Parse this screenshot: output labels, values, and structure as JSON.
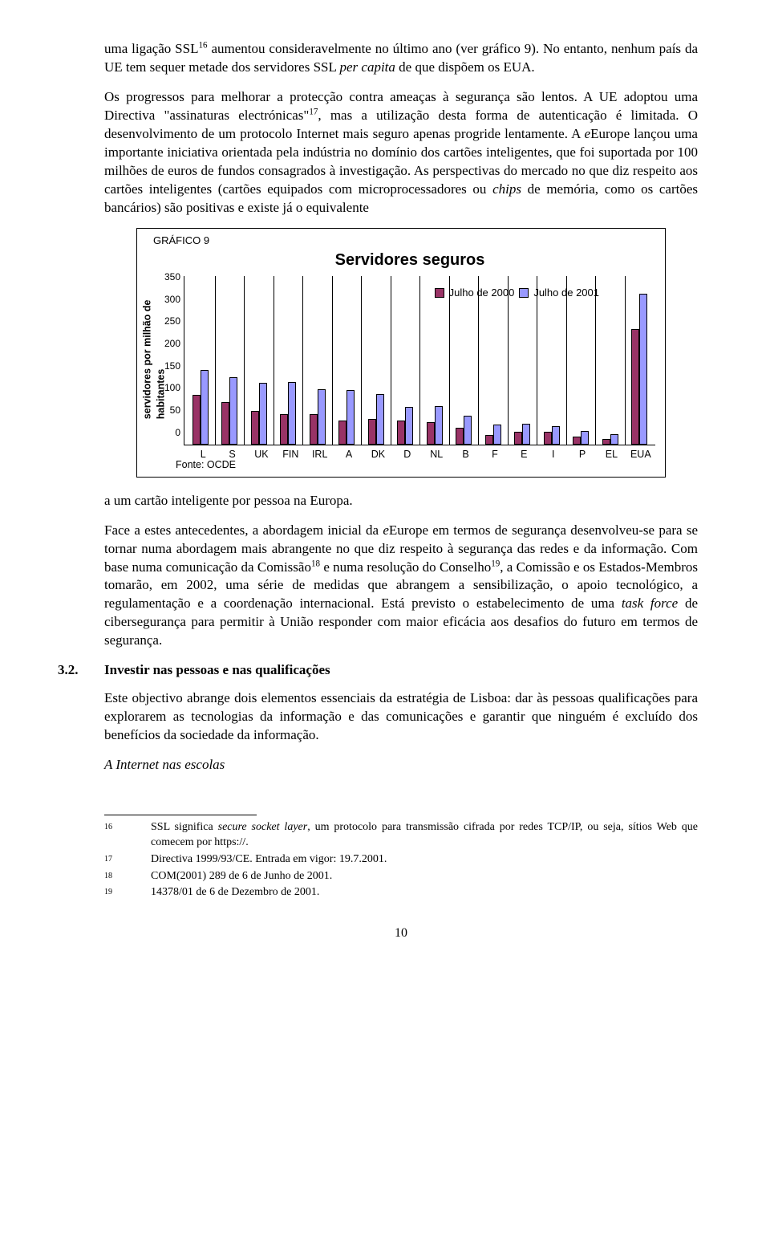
{
  "para1": {
    "t1": "uma ligação SSL",
    "s1": "16",
    "t2": " aumentou consideravelmente no último ano (ver gráfico 9). No entanto, nenhum país da UE tem sequer metade dos servidores SSL ",
    "i1": "per capita",
    "t3": " de que dispõem os EUA."
  },
  "para2": {
    "t1": "Os progressos para melhorar a protecção contra ameaças à segurança são lentos. A UE adoptou uma Directiva \"assinaturas electrónicas\"",
    "s1": "17",
    "t2": ", mas a utilização desta forma de autenticação é limitada. O desenvolvimento de um protocolo Internet mais seguro apenas progride lentamente. A ",
    "i1": "e",
    "t3": "Europe lançou uma importante iniciativa orientada pela indústria no domínio dos cartões inteligentes, que foi suportada por 100 milhões de euros de fundos consagrados à investigação. As perspectivas do mercado no que diz respeito aos cartões inteligentes (cartões equipados com microprocessadores ou ",
    "i2": "chips",
    "t4": " de memória, como os cartões bancários) são positivas e existe já o equivalente"
  },
  "chart": {
    "label": "GRÁFICO 9",
    "title": "Servidores seguros",
    "ylabel": "servidores por milhão de\nhabitantes",
    "legend": [
      "Julho de 2000",
      "Julho de 2001"
    ],
    "colors": [
      "#993366",
      "#9999ff"
    ],
    "ymax": 350,
    "yticks": [
      0,
      50,
      100,
      150,
      200,
      250,
      300,
      350
    ],
    "categories": [
      "L",
      "S",
      "UK",
      "FIN",
      "IRL",
      "A",
      "DK",
      "D",
      "NL",
      "B",
      "F",
      "E",
      "I",
      "P",
      "EL",
      "EUA"
    ],
    "series1": [
      103,
      88,
      70,
      63,
      63,
      50,
      53,
      50,
      47,
      35,
      20,
      27,
      27,
      16,
      12,
      240
    ],
    "series2": [
      155,
      140,
      128,
      130,
      115,
      113,
      105,
      78,
      80,
      60,
      42,
      43,
      38,
      28,
      22,
      313
    ],
    "fonte": "Fonte: OCDE"
  },
  "para3": "a um cartão inteligente por pessoa na Europa.",
  "para4": {
    "t1": "Face a estes antecedentes, a abordagem inicial da ",
    "i1": "e",
    "t2": "Europe em termos de segurança desenvolveu-se para se tornar numa abordagem mais abrangente no que diz respeito à segurança das redes e da informação. Com base numa comunicação da Comissão",
    "s1": "18",
    "t3": " e numa resolução do Conselho",
    "s2": "19",
    "t4": ", a Comissão e os Estados-Membros tomarão, em 2002, uma série de medidas que abrangem a sensibilização, o apoio tecnológico, a regulamentação e a coordenação internacional. Está previsto o estabelecimento de uma ",
    "i2": "task force",
    "t5": " de cibersegurança para permitir à União responder com maior eficácia aos desafios do futuro em termos de segurança."
  },
  "section": {
    "num": "3.2.",
    "title": "Investir nas pessoas e nas qualificações"
  },
  "para5": "Este objectivo abrange dois elementos essenciais da estratégia de Lisboa: dar às pessoas qualificações para explorarem as tecnologias da informação e das comunicações e garantir que ninguém é excluído dos benefícios da sociedade da informação.",
  "para6": "A Internet nas escolas",
  "footnotes": [
    {
      "n": "16",
      "a": "SSL significa ",
      "i": "secure socket layer",
      "b": ", um protocolo para transmissão cifrada por redes TCP/IP, ou seja, sítios Web que comecem por https://."
    },
    {
      "n": "17",
      "a": "Directiva 1999/93/CE. Entrada em vigor: 19.7.2001.",
      "i": "",
      "b": ""
    },
    {
      "n": "18",
      "a": "COM(2001) 289 de 6 de Junho de 2001.",
      "i": "",
      "b": ""
    },
    {
      "n": "19",
      "a": "14378/01 de 6 de Dezembro de 2001.",
      "i": "",
      "b": ""
    }
  ],
  "pagenum": "10"
}
